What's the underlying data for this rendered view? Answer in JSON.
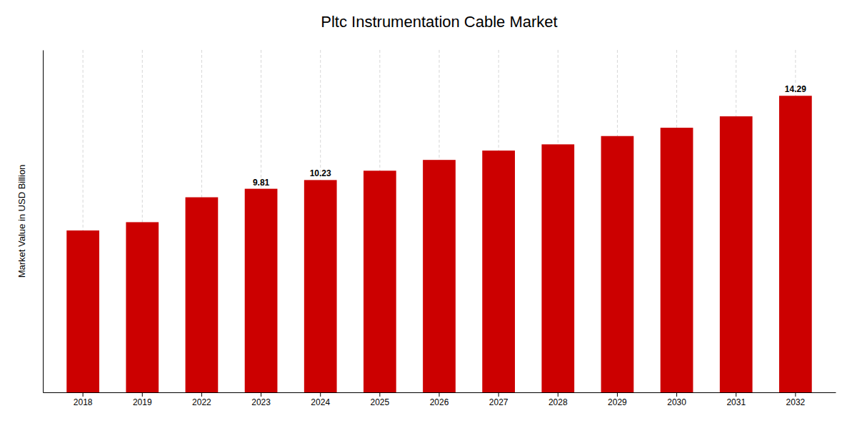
{
  "chart_data": {
    "type": "bar",
    "title": "Pltc Instrumentation Cable Market",
    "ylabel": "Market Value in USD Billion",
    "categories": [
      "2018",
      "2019",
      "2022",
      "2023",
      "2024",
      "2025",
      "2026",
      "2027",
      "2028",
      "2029",
      "2030",
      "2031",
      "2032"
    ],
    "values": [
      7.8,
      8.2,
      9.4,
      9.81,
      10.23,
      10.68,
      11.2,
      11.65,
      11.95,
      12.35,
      12.75,
      13.3,
      14.29
    ],
    "color": "#CC0000",
    "ylim": [
      0,
      16.5
    ],
    "yticks": [],
    "tick_labels": "x",
    "grid": true,
    "annotations": [
      {
        "category": "2023",
        "text": "9.81"
      },
      {
        "category": "2024",
        "text": "10.23"
      },
      {
        "category": "2032",
        "text": "14.29"
      }
    ]
  }
}
